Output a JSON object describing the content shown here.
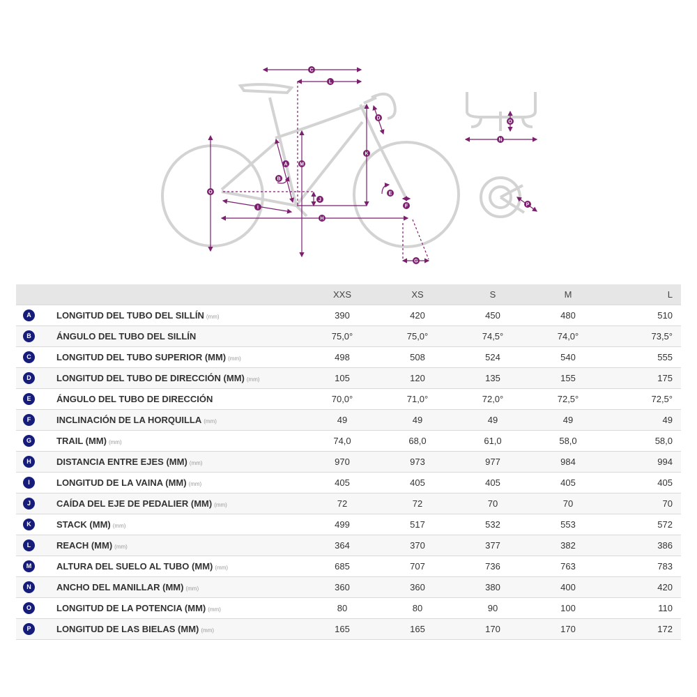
{
  "table": {
    "columns": [
      "XXS",
      "XS",
      "S",
      "M",
      "L"
    ],
    "rows": [
      {
        "letter": "A",
        "label": "LONGITUD DEL TUBO DEL SILLÍN",
        "unit": "(mm)",
        "values": [
          "390",
          "420",
          "450",
          "480",
          "510"
        ]
      },
      {
        "letter": "B",
        "label": "ÁNGULO DEL TUBO DEL SILLÍN",
        "unit": "",
        "values": [
          "75,0°",
          "75,0°",
          "74,5°",
          "74,0°",
          "73,5°"
        ]
      },
      {
        "letter": "C",
        "label": "LONGITUD DEL TUBO SUPERIOR (MM)",
        "unit": "(mm)",
        "values": [
          "498",
          "508",
          "524",
          "540",
          "555"
        ]
      },
      {
        "letter": "D",
        "label": "LONGITUD DEL TUBO DE DIRECCIÓN (MM)",
        "unit": "(mm)",
        "values": [
          "105",
          "120",
          "135",
          "155",
          "175"
        ]
      },
      {
        "letter": "E",
        "label": "ÁNGULO DEL TUBO DE DIRECCIÓN",
        "unit": "",
        "values": [
          "70,0°",
          "71,0°",
          "72,0°",
          "72,5°",
          "72,5°"
        ]
      },
      {
        "letter": "F",
        "label": "INCLINACIÓN DE LA HORQUILLA",
        "unit": "(mm)",
        "values": [
          "49",
          "49",
          "49",
          "49",
          "49"
        ]
      },
      {
        "letter": "G",
        "label": "TRAIL (MM)",
        "unit": "(mm)",
        "values": [
          "74,0",
          "68,0",
          "61,0",
          "58,0",
          "58,0"
        ]
      },
      {
        "letter": "H",
        "label": "DISTANCIA ENTRE EJES (MM)",
        "unit": "(mm)",
        "values": [
          "970",
          "973",
          "977",
          "984",
          "994"
        ]
      },
      {
        "letter": "I",
        "label": "LONGITUD DE LA VAINA (MM)",
        "unit": "(mm)",
        "values": [
          "405",
          "405",
          "405",
          "405",
          "405"
        ]
      },
      {
        "letter": "J",
        "label": "CAÍDA DEL EJE DE PEDALIER (MM)",
        "unit": "(mm)",
        "values": [
          "72",
          "72",
          "70",
          "70",
          "70"
        ]
      },
      {
        "letter": "K",
        "label": "STACK (MM)",
        "unit": "(mm)",
        "values": [
          "499",
          "517",
          "532",
          "553",
          "572"
        ]
      },
      {
        "letter": "L",
        "label": "REACH (MM)",
        "unit": "(mm)",
        "values": [
          "364",
          "370",
          "377",
          "382",
          "386"
        ]
      },
      {
        "letter": "M",
        "label": "ALTURA DEL SUELO AL TUBO (MM)",
        "unit": "(mm)",
        "values": [
          "685",
          "707",
          "736",
          "763",
          "783"
        ]
      },
      {
        "letter": "N",
        "label": "ANCHO DEL MANILLAR (MM)",
        "unit": "(mm)",
        "values": [
          "360",
          "360",
          "380",
          "400",
          "420"
        ]
      },
      {
        "letter": "O",
        "label": "LONGITUD DE LA POTENCIA (MM)",
        "unit": "(mm)",
        "values": [
          "80",
          "80",
          "90",
          "100",
          "110"
        ]
      },
      {
        "letter": "P",
        "label": "LONGITUD DE LAS BIELAS (MM)",
        "unit": "(mm)",
        "values": [
          "165",
          "165",
          "170",
          "170",
          "172"
        ]
      }
    ]
  },
  "colors": {
    "badge": "#161c7a",
    "dimension": "#7b1f6e",
    "frame_outline": "#d3d3d3",
    "header_bg": "#e6e6e6"
  }
}
